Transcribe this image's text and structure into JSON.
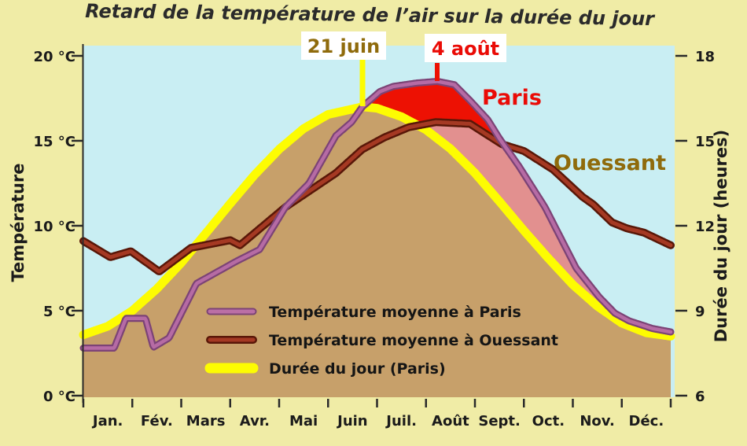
{
  "title": "Retard de la température de l’air sur la durée du jour",
  "axes": {
    "left": {
      "title": "Température",
      "tick_labels": [
        "20 °C",
        "15 °C",
        "10 °C",
        "5 °C",
        "0 °C"
      ],
      "tick_values": [
        20,
        15,
        10,
        5,
        0
      ]
    },
    "right": {
      "title": "Durée du jour (heures)",
      "tick_labels": [
        "18",
        "15",
        "12",
        "9",
        "6"
      ],
      "tick_values": [
        18,
        15,
        12,
        9,
        6
      ]
    },
    "bottom": {
      "month_labels": [
        "Jan.",
        "Fév.",
        "Mars",
        "Avr.",
        "Mai",
        "Juin",
        "Juil.",
        "Août",
        "Sept.",
        "Oct.",
        "Nov.",
        "Déc."
      ]
    }
  },
  "legend": {
    "items": [
      {
        "label": "Température moyenne à Paris",
        "swatch": "paris-line-swatch",
        "color": "#bb6fa5"
      },
      {
        "label": "Température moyenne à Ouessant",
        "swatch": "ouessant-line-swatch",
        "color": "#9e2f17"
      },
      {
        "label": "Durée du jour (Paris)",
        "swatch": "daylength-line-swatch",
        "color": "#fdfc02"
      }
    ]
  },
  "annotations": {
    "solstice": {
      "label": "21 juin",
      "marker": "yellow-vertical-line"
    },
    "temp_peak": {
      "label": "4 août",
      "marker": "red-vertical-line"
    },
    "paris_curve_label": "Paris",
    "ouessant_curve_label": "Ouessant"
  },
  "colors": {
    "page_background": "#f0eca6",
    "plot_background": "#c9eef3",
    "day_area_fill": "#c7a06a",
    "lag_area_pink": "#e2908f",
    "lag_area_red": "#ed1103",
    "day_curve": "#fdfc02",
    "paris_curve_inner": "#b66ba4",
    "paris_curve_outer": "#7c4376",
    "ouessant_curve_inner": "#a53923",
    "ouessant_curve_outer": "#591708",
    "text": "#1b1b1b",
    "gold_text": "#8f6b0c",
    "red_text": "#ea0b06"
  },
  "chart_data": {
    "type": "line",
    "x_unit": "months (0 = 1 janv., 12 = 31 déc.)",
    "categories": [
      "Jan.",
      "Fév.",
      "Mars",
      "Avr.",
      "Mai",
      "Juin",
      "Juil.",
      "Août",
      "Sept.",
      "Oct.",
      "Nov.",
      "Déc."
    ],
    "axis_left": {
      "label": "Température",
      "unit": "°C",
      "range": [
        0,
        20
      ]
    },
    "axis_right": {
      "label": "Durée du jour",
      "unit": "heures",
      "range": [
        6,
        18
      ]
    },
    "grid": false,
    "legend_position": "inside lower-left of plot",
    "series": [
      {
        "name": "Durée du jour (Paris)",
        "axis": "right",
        "style": "thick yellow line, area under it filled tan",
        "monthly_values": [
          8.45,
          9.8,
          11.7,
          13.8,
          15.4,
          16.2,
          15.9,
          14.7,
          12.9,
          10.9,
          9.2,
          8.2
        ],
        "points": [
          [
            0,
            8.15
          ],
          [
            0.5,
            8.45
          ],
          [
            1,
            9.0
          ],
          [
            1.5,
            9.77
          ],
          [
            2,
            10.69
          ],
          [
            2.5,
            11.73
          ],
          [
            3,
            12.78
          ],
          [
            3.5,
            13.8
          ],
          [
            4,
            14.7
          ],
          [
            4.5,
            15.43
          ],
          [
            5,
            15.93
          ],
          [
            5.7,
            16.2
          ],
          [
            6,
            16.15
          ],
          [
            6.5,
            15.85
          ],
          [
            7,
            15.39
          ],
          [
            7.5,
            14.72
          ],
          [
            8,
            13.86
          ],
          [
            8.5,
            12.86
          ],
          [
            9,
            11.83
          ],
          [
            9.5,
            10.85
          ],
          [
            10,
            9.92
          ],
          [
            10.5,
            9.16
          ],
          [
            11,
            8.56
          ],
          [
            11.5,
            8.22
          ],
          [
            12,
            8.1
          ]
        ]
      },
      {
        "name": "Température moyenne à Paris",
        "axis": "left",
        "style": "mauve/purple line",
        "monthly_values": [
          2.8,
          3.0,
          6.9,
          8.5,
          12.2,
          16.2,
          18.3,
          18.3,
          15.1,
          10.7,
          6.0,
          4.0
        ],
        "points": [
          [
            0,
            2.8
          ],
          [
            0.63,
            2.8
          ],
          [
            0.87,
            4.55
          ],
          [
            1.27,
            4.55
          ],
          [
            1.43,
            2.85
          ],
          [
            1.75,
            3.4
          ],
          [
            2.31,
            6.6
          ],
          [
            3.12,
            7.9
          ],
          [
            3.6,
            8.6
          ],
          [
            4.13,
            11.1
          ],
          [
            4.61,
            12.5
          ],
          [
            5.16,
            15.3
          ],
          [
            5.48,
            16.1
          ],
          [
            5.7,
            17.0
          ],
          [
            6.06,
            17.9
          ],
          [
            6.33,
            18.2
          ],
          [
            6.81,
            18.4
          ],
          [
            7.23,
            18.5
          ],
          [
            7.58,
            18.3
          ],
          [
            7.89,
            17.4
          ],
          [
            8.26,
            16.25
          ],
          [
            8.51,
            15.1
          ],
          [
            8.9,
            13.5
          ],
          [
            9.43,
            11.1
          ],
          [
            10.07,
            7.5
          ],
          [
            10.54,
            5.8
          ],
          [
            10.86,
            4.85
          ],
          [
            11.15,
            4.4
          ],
          [
            11.63,
            3.95
          ],
          [
            12,
            3.75
          ]
        ]
      },
      {
        "name": "Température moyenne à Ouessant",
        "axis": "left",
        "style": "dark red line",
        "monthly_values": [
          8.25,
          7.4,
          8.9,
          9.5,
          11.8,
          14.0,
          15.6,
          16.1,
          14.9,
          13.4,
          11.0,
          9.4
        ],
        "points": [
          [
            0,
            9.1
          ],
          [
            0.55,
            8.15
          ],
          [
            0.97,
            8.5
          ],
          [
            1.55,
            7.3
          ],
          [
            2.2,
            8.7
          ],
          [
            3.0,
            9.15
          ],
          [
            3.2,
            8.85
          ],
          [
            4.13,
            11.1
          ],
          [
            5.16,
            13.1
          ],
          [
            5.7,
            14.5
          ],
          [
            6.15,
            15.2
          ],
          [
            6.65,
            15.8
          ],
          [
            7.2,
            16.1
          ],
          [
            7.9,
            16.0
          ],
          [
            8.55,
            14.8
          ],
          [
            9.0,
            14.4
          ],
          [
            9.6,
            13.3
          ],
          [
            10.2,
            11.7
          ],
          [
            10.42,
            11.25
          ],
          [
            10.8,
            10.2
          ],
          [
            11.1,
            9.85
          ],
          [
            11.45,
            9.6
          ],
          [
            12,
            8.85
          ]
        ]
      }
    ],
    "highlights": [
      {
        "name": "lag area",
        "description": "zone entre la courbe de température de Paris et la durée du jour après le 21 juin ; partie au-dessus de la courbe d'Ouessant en rouge vif, le reste en rose"
      },
      {
        "name": "21 juin",
        "x_month": 5.7,
        "meaning": "maximum de la durée du jour (16,2 h)"
      },
      {
        "name": "4 août",
        "x_month": 7.23,
        "meaning": "maximum de la température à Paris (18,5 °C)"
      }
    ]
  }
}
